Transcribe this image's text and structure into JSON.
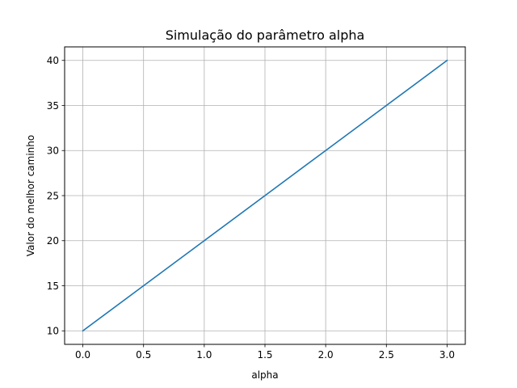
{
  "chart_data": {
    "type": "line",
    "title": "Simulação do parâmetro alpha",
    "xlabel": "alpha",
    "ylabel": "Valor do melhor caminho",
    "xlim": [
      -0.15,
      3.15
    ],
    "ylim": [
      8.5,
      41.5
    ],
    "xticks": [
      0.0,
      0.5,
      1.0,
      1.5,
      2.0,
      2.5,
      3.0
    ],
    "xtick_labels": [
      "0.0",
      "0.5",
      "1.0",
      "1.5",
      "2.0",
      "2.5",
      "3.0"
    ],
    "yticks": [
      10,
      15,
      20,
      25,
      30,
      35,
      40
    ],
    "ytick_labels": [
      "10",
      "15",
      "20",
      "25",
      "30",
      "35",
      "40"
    ],
    "grid": true,
    "series": [
      {
        "color": "#1f77b4",
        "x": [
          0.0,
          0.5,
          1.0,
          1.5,
          2.0,
          2.5,
          3.0
        ],
        "y": [
          10,
          15,
          20,
          25,
          30,
          35,
          40
        ]
      }
    ]
  }
}
